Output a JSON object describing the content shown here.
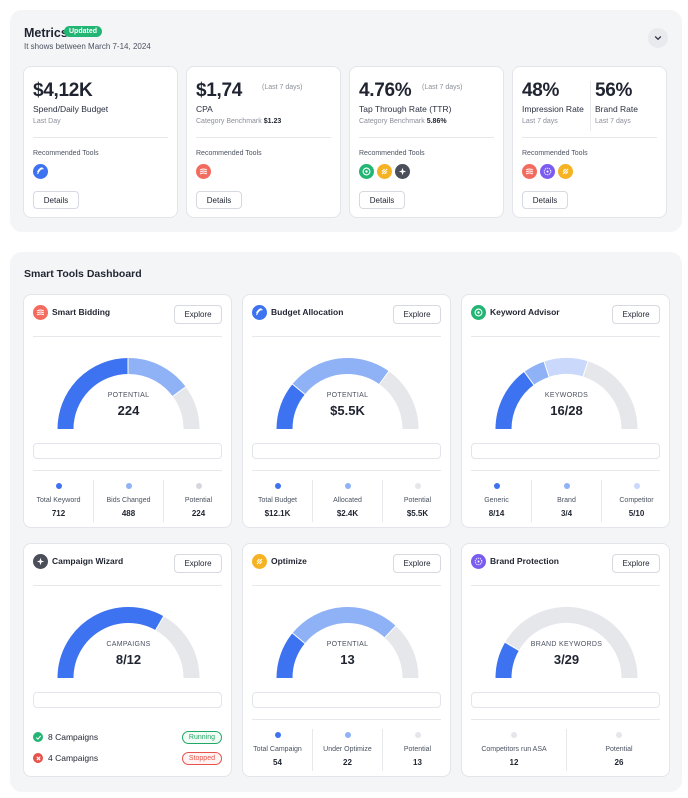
{
  "metrics": {
    "title": "Metrics",
    "badge": "Updated",
    "subtitle": "It shows between March 7-14, 2024",
    "cards": [
      {
        "value": "$4,12K",
        "label": "Spend/Daily Budget",
        "sub": "Last Day",
        "tools_label": "Recommended Tools",
        "details": "Details",
        "icons": [
          "budget-allocation-icon"
        ]
      },
      {
        "value": "$1,74",
        "note": "(Last 7 days)",
        "label": "CPA",
        "sub_prefix": "Category Benchmark",
        "sub_value": "$1.23",
        "tools_label": "Recommended Tools",
        "details": "Details",
        "icons": [
          "smart-bidding-icon"
        ]
      },
      {
        "value": "4.76%",
        "note": "(Last 7 days)",
        "label": "Tap Through Rate (TTR)",
        "sub_prefix": "Category Benchmark",
        "sub_value": "5.86%",
        "tools_label": "Recommended Tools",
        "details": "Details",
        "icons": [
          "keyword-advisor-icon",
          "optimize-icon",
          "campaign-wizard-icon"
        ]
      },
      {
        "value": "48%",
        "label": "Impression Rate",
        "sub": "Last 7 days",
        "value2": "56%",
        "label2": "Brand Rate",
        "sub2": "Last 7 days",
        "tools_label": "Recommended Tools",
        "details": "Details",
        "icons": [
          "smart-bidding-icon",
          "brand-protection-icon",
          "optimize-icon"
        ]
      }
    ]
  },
  "smart": {
    "title": "Smart Tools Dashboard",
    "explore": "Explore",
    "tools": [
      {
        "name": "Smart Bidding",
        "icon": "smart-bidding-icon",
        "gauge_label": "POTENTIAL",
        "gauge_value": "224",
        "segments": [
          0.5,
          0.3,
          0.2
        ],
        "colors": [
          "#3d72f0",
          "#8fb1f6",
          "#e6e7eb"
        ],
        "legend": [
          {
            "name": "Total Keyword",
            "value": "712",
            "color": "#3d72f0"
          },
          {
            "name": "Bids Changed",
            "value": "488",
            "color": "#8fb1f6"
          },
          {
            "name": "Potential",
            "value": "224",
            "color": "#d5d7dc"
          }
        ]
      },
      {
        "name": "Budget Allocation",
        "icon": "budget-allocation-icon",
        "gauge_label": "POTENTIAL",
        "gauge_value": "$5.5K",
        "segments": [
          0.22,
          0.48,
          0.3
        ],
        "colors": [
          "#3d72f0",
          "#8fb1f6",
          "#e6e7eb"
        ],
        "legend": [
          {
            "name": "Total Budget",
            "value": "$12.1K",
            "color": "#3d72f0"
          },
          {
            "name": "Allocated",
            "value": "$2.4K",
            "color": "#8fb1f6"
          },
          {
            "name": "Potential",
            "value": "$5.5K",
            "color": "#e4e6ea"
          }
        ]
      },
      {
        "name": "Keyword Advisor",
        "icon": "keyword-advisor-icon",
        "gauge_label": "KEYWORDS",
        "gauge_value": "16/28",
        "segments": [
          0.3,
          0.1,
          0.2,
          0.4
        ],
        "colors": [
          "#3d72f0",
          "#8fb1f6",
          "#c9d8fb",
          "#e6e7eb"
        ],
        "legend": [
          {
            "name": "Generic",
            "value": "8/14",
            "color": "#3d72f0"
          },
          {
            "name": "Brand",
            "value": "3/4",
            "color": "#8fb1f6"
          },
          {
            "name": "Competitor",
            "value": "5/10",
            "color": "#c9d8fb"
          }
        ]
      },
      {
        "name": "Campaign Wizard",
        "icon": "campaign-wizard-icon",
        "gauge_label": "CAMPAIGNS",
        "gauge_value": "8/12",
        "segments": [
          0.667,
          0.333
        ],
        "colors": [
          "#3d72f0",
          "#e6e7eb"
        ],
        "campaigns": [
          {
            "text": "8 Campaigns",
            "status": "Running",
            "kind": "run"
          },
          {
            "text": "4 Campaigns",
            "status": "Stopped",
            "kind": "stop"
          }
        ]
      },
      {
        "name": "Optimize",
        "icon": "optimize-icon",
        "gauge_label": "POTENTIAL",
        "gauge_value": "13",
        "segments": [
          0.22,
          0.52,
          0.26
        ],
        "colors": [
          "#3d72f0",
          "#8fb1f6",
          "#e6e7eb"
        ],
        "legend": [
          {
            "name": "Total Campaign",
            "value": "54",
            "color": "#3d72f0"
          },
          {
            "name": "Under Optimize",
            "value": "22",
            "color": "#8fb1f6"
          },
          {
            "name": "Potential",
            "value": "13",
            "color": "#e4e6ea"
          }
        ]
      },
      {
        "name": "Brand Protection",
        "icon": "brand-protection-icon",
        "gauge_label": "BRAND KEYWORDS",
        "gauge_value": "3/29",
        "segments": [
          0.17,
          0.83
        ],
        "colors": [
          "#3d72f0",
          "#e6e7eb"
        ],
        "legend": [
          {
            "name": "Competitors run ASA",
            "value": "12",
            "color": "#e4e6ea"
          },
          {
            "name": "Potential",
            "value": "26",
            "color": "#e4e6ea"
          }
        ]
      }
    ]
  }
}
